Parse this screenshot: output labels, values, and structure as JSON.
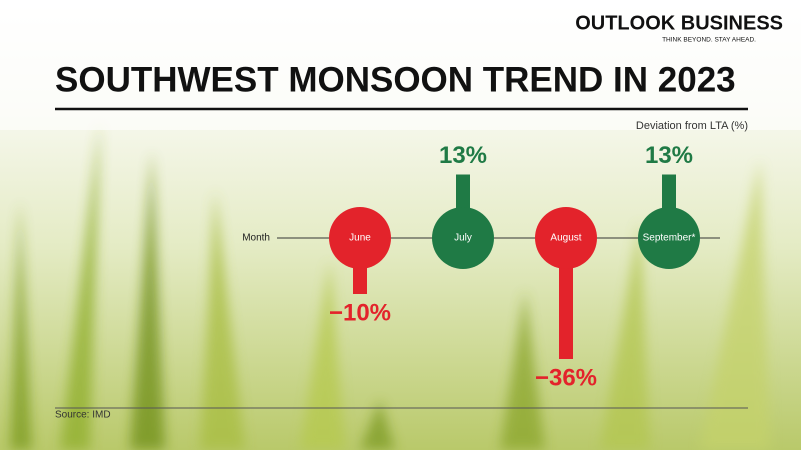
{
  "header": {
    "brand": "OUTLOOK BUSINESS",
    "tagline": "THINK BEYOND. STAY AHEAD."
  },
  "chart_data": {
    "type": "lollipop",
    "title": "SOUTHWEST MONSOON TREND IN 2023",
    "subtitle": "Deviation from LTA (%)",
    "x_label": "Month",
    "categories": [
      "June",
      "July",
      "August",
      "September*"
    ],
    "values": [
      -10,
      13,
      -36,
      13
    ],
    "value_labels": [
      "−10%",
      "13%",
      "−36%",
      "13%"
    ],
    "positive_color": "#1f7a45",
    "negative_color": "#e3232b",
    "source": "Source: IMD"
  }
}
